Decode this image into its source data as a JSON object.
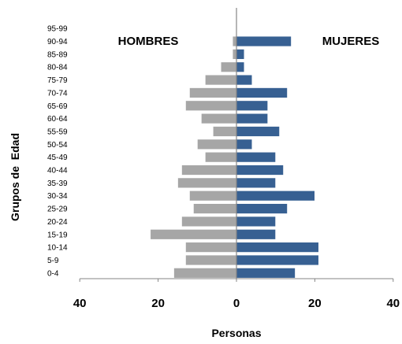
{
  "chart_data": {
    "type": "bar",
    "subtype": "population-pyramid",
    "orientation": "horizontal",
    "categories": [
      "0-4",
      "5-9",
      "10-14",
      "15-19",
      "20-24",
      "25-29",
      "30-34",
      "35-39",
      "40-44",
      "45-49",
      "50-54",
      "55-59",
      "60-64",
      "65-69",
      "70-74",
      "75-79",
      "80-84",
      "85-89",
      "90-94",
      "95-99"
    ],
    "series": [
      {
        "name": "HOMBRES",
        "side": "left",
        "color": "#A6A6A6",
        "values": [
          16,
          13,
          13,
          22,
          14,
          11,
          12,
          15,
          14,
          8,
          10,
          6,
          9,
          13,
          12,
          8,
          4,
          1,
          1,
          0
        ]
      },
      {
        "name": "MUJERES",
        "side": "right",
        "color": "#376092",
        "values": [
          15,
          21,
          21,
          10,
          10,
          13,
          20,
          10,
          12,
          10,
          4,
          11,
          8,
          8,
          13,
          4,
          2,
          2,
          14,
          0
        ]
      }
    ],
    "xlim": [
      -40,
      40
    ],
    "xticks": [
      -40,
      -20,
      0,
      20,
      40
    ],
    "xtick_labels": [
      "40",
      "20",
      "0",
      "20",
      "40"
    ],
    "xlabel": "Personas",
    "ylabel": "Grupos de  Edad",
    "legend": "none",
    "grid": false
  }
}
